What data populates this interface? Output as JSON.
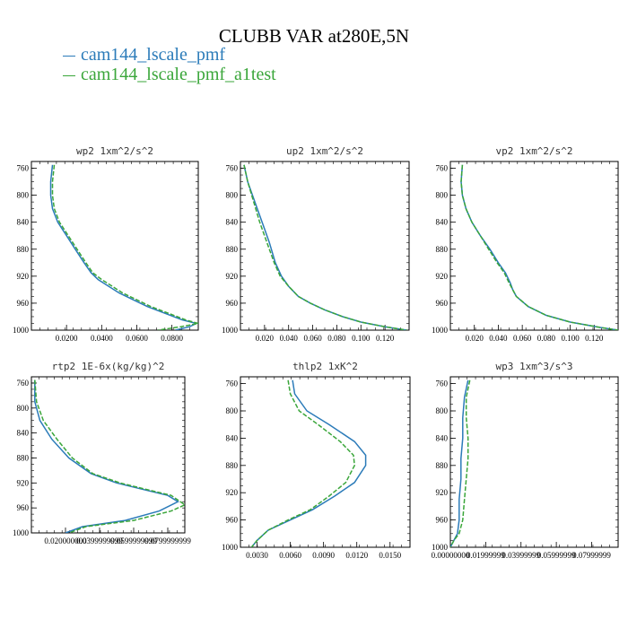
{
  "title": "CLUBB VAR at280E,5N",
  "legend": [
    {
      "label": "cam144_lscale_pmf",
      "color": "#2b7bb9"
    },
    {
      "label": "cam144_lscale_pmf_a1test",
      "color": "#3aa63a"
    }
  ],
  "chart_data": [
    {
      "type": "line",
      "title": "wp2  1xm^2/s^2",
      "xlim": [
        0.0,
        0.095
      ],
      "ylim": [
        1000,
        750
      ],
      "xticks": [
        "0.0200",
        "0.0400",
        "0.0600",
        "0.0800"
      ],
      "xtick_values": [
        0.02,
        0.04,
        0.06,
        0.08
      ],
      "yticks": [
        "760",
        "800",
        "840",
        "880",
        "920",
        "960",
        "1000"
      ],
      "series": [
        {
          "name": "cam144_lscale_pmf",
          "x": [
            0.012,
            0.011,
            0.011,
            0.012,
            0.015,
            0.02,
            0.025,
            0.03,
            0.034,
            0.038,
            0.044,
            0.05,
            0.058,
            0.066,
            0.076,
            0.086,
            0.094,
            0.09,
            0.082
          ],
          "y": [
            755,
            780,
            800,
            820,
            840,
            860,
            880,
            900,
            915,
            925,
            935,
            945,
            955,
            965,
            975,
            985,
            990,
            995,
            1000
          ]
        },
        {
          "name": "cam144_lscale_pmf_a1test",
          "x": [
            0.013,
            0.012,
            0.012,
            0.013,
            0.016,
            0.021,
            0.026,
            0.031,
            0.035,
            0.04,
            0.046,
            0.052,
            0.06,
            0.068,
            0.078,
            0.088,
            0.095,
            0.085,
            0.072
          ],
          "y": [
            755,
            780,
            800,
            820,
            840,
            860,
            880,
            900,
            915,
            925,
            935,
            945,
            955,
            965,
            975,
            985,
            990,
            995,
            1000
          ]
        }
      ]
    },
    {
      "type": "line",
      "title": "up2  1xm^2/s^2",
      "xlim": [
        0.0,
        0.14
      ],
      "ylim": [
        1000,
        750
      ],
      "xticks": [
        "0.020",
        "0.040",
        "0.060",
        "0.080",
        "0.100",
        "0.120"
      ],
      "xtick_values": [
        0.02,
        0.04,
        0.06,
        0.08,
        0.1,
        0.12
      ],
      "yticks": [
        "760",
        "800",
        "840",
        "880",
        "920",
        "960",
        "1000"
      ],
      "series": [
        {
          "name": "cam144_lscale_pmf",
          "x": [
            0.003,
            0.006,
            0.012,
            0.018,
            0.024,
            0.029,
            0.034,
            0.04,
            0.048,
            0.058,
            0.07,
            0.085,
            0.1,
            0.12,
            0.138
          ],
          "y": [
            755,
            780,
            810,
            840,
            870,
            900,
            920,
            935,
            950,
            960,
            970,
            980,
            988,
            995,
            1000
          ]
        },
        {
          "name": "cam144_lscale_pmf_a1test",
          "x": [
            0.003,
            0.006,
            0.011,
            0.016,
            0.022,
            0.028,
            0.033,
            0.04,
            0.048,
            0.058,
            0.07,
            0.085,
            0.1,
            0.12,
            0.138
          ],
          "y": [
            755,
            780,
            810,
            840,
            870,
            900,
            920,
            935,
            950,
            960,
            970,
            980,
            988,
            995,
            1000
          ]
        }
      ]
    },
    {
      "type": "line",
      "title": "vp2  1xm^2/s^2",
      "xlim": [
        0.0,
        0.14
      ],
      "ylim": [
        1000,
        750
      ],
      "xticks": [
        "0.020",
        "0.040",
        "0.060",
        "0.080",
        "0.100",
        "0.120"
      ],
      "xtick_values": [
        0.02,
        0.04,
        0.06,
        0.08,
        0.1,
        0.12
      ],
      "yticks": [
        "760",
        "800",
        "840",
        "880",
        "920",
        "960",
        "1000"
      ],
      "series": [
        {
          "name": "cam144_lscale_pmf",
          "x": [
            0.01,
            0.009,
            0.01,
            0.013,
            0.018,
            0.025,
            0.033,
            0.04,
            0.046,
            0.05,
            0.052,
            0.055,
            0.065,
            0.08,
            0.1,
            0.125,
            0.14
          ],
          "y": [
            755,
            780,
            800,
            820,
            840,
            860,
            880,
            900,
            915,
            930,
            940,
            950,
            965,
            978,
            988,
            996,
            1000
          ]
        },
        {
          "name": "cam144_lscale_pmf_a1test",
          "x": [
            0.01,
            0.009,
            0.01,
            0.013,
            0.018,
            0.025,
            0.032,
            0.039,
            0.045,
            0.049,
            0.052,
            0.055,
            0.065,
            0.08,
            0.1,
            0.125,
            0.14
          ],
          "y": [
            755,
            780,
            800,
            820,
            840,
            860,
            880,
            900,
            915,
            930,
            940,
            950,
            965,
            978,
            988,
            996,
            1000
          ]
        }
      ]
    },
    {
      "type": "line",
      "title": "rtp2  1E-6x(kg/kg)^2",
      "xlim": [
        0.0,
        0.09
      ],
      "ylim": [
        1000,
        750
      ],
      "xticks": [
        "0.020000000",
        "0.0399999999",
        "0.0599999999",
        "0.0799999999"
      ],
      "xtick_values": [
        0.02,
        0.04,
        0.06,
        0.08
      ],
      "yticks": [
        "760",
        "800",
        "840",
        "880",
        "920",
        "960",
        "1000"
      ],
      "series": [
        {
          "name": "cam144_lscale_pmf",
          "x": [
            0.002,
            0.002,
            0.005,
            0.012,
            0.022,
            0.035,
            0.05,
            0.065,
            0.08,
            0.086,
            0.075,
            0.055,
            0.03,
            0.02
          ],
          "y": [
            755,
            790,
            820,
            850,
            880,
            905,
            920,
            930,
            940,
            950,
            965,
            980,
            990,
            1000
          ]
        },
        {
          "name": "cam144_lscale_pmf_a1test",
          "x": [
            0.002,
            0.003,
            0.007,
            0.015,
            0.024,
            0.036,
            0.052,
            0.067,
            0.082,
            0.09,
            0.082,
            0.06,
            0.032,
            0.022
          ],
          "y": [
            755,
            790,
            820,
            850,
            880,
            905,
            920,
            930,
            940,
            955,
            965,
            980,
            990,
            1000
          ]
        }
      ]
    },
    {
      "type": "line",
      "title": "thlp2  1xK^2",
      "xlim": [
        0.0015,
        0.0168
      ],
      "ylim": [
        1000,
        750
      ],
      "xticks": [
        "0.0030",
        "0.0060",
        "0.0090",
        "0.0120",
        "0.0150"
      ],
      "xtick_values": [
        0.003,
        0.006,
        0.009,
        0.012,
        0.015
      ],
      "yticks": [
        "760",
        "800",
        "840",
        "880",
        "920",
        "960",
        "1000"
      ],
      "series": [
        {
          "name": "cam144_lscale_pmf",
          "x": [
            0.0062,
            0.0064,
            0.0075,
            0.0095,
            0.0118,
            0.0128,
            0.0128,
            0.0118,
            0.01,
            0.008,
            0.006,
            0.004,
            0.003,
            0.0025
          ],
          "y": [
            755,
            775,
            800,
            820,
            845,
            865,
            880,
            905,
            925,
            945,
            960,
            975,
            990,
            1000
          ]
        },
        {
          "name": "cam144_lscale_pmf_a1test",
          "x": [
            0.0058,
            0.006,
            0.0068,
            0.0085,
            0.0105,
            0.0117,
            0.0118,
            0.011,
            0.0095,
            0.0078,
            0.0058,
            0.004,
            0.003,
            0.0025
          ],
          "y": [
            755,
            775,
            800,
            820,
            845,
            865,
            880,
            905,
            925,
            945,
            960,
            975,
            990,
            1000
          ]
        }
      ]
    },
    {
      "type": "line",
      "title": "wp3  1xm^3/s^3",
      "xlim": [
        0.0,
        0.095
      ],
      "ylim": [
        1000,
        750
      ],
      "xticks": [
        "0.00000000",
        "0.01999999",
        "0.03999999",
        "0.05999999",
        "0.07999999"
      ],
      "xtick_values": [
        0.0,
        0.02,
        0.04,
        0.06,
        0.08
      ],
      "yticks": [
        "760",
        "800",
        "840",
        "880",
        "920",
        "960",
        "1000"
      ],
      "series": [
        {
          "name": "cam144_lscale_pmf",
          "x": [
            0.01,
            0.008,
            0.007,
            0.007,
            0.006,
            0.006,
            0.005,
            0.005,
            0.004,
            0.002,
            0.0
          ],
          "y": [
            755,
            780,
            810,
            840,
            870,
            900,
            930,
            960,
            980,
            990,
            1000
          ]
        },
        {
          "name": "cam144_lscale_pmf_a1test",
          "x": [
            0.011,
            0.009,
            0.009,
            0.01,
            0.01,
            0.009,
            0.008,
            0.007,
            0.005,
            0.002,
            0.0
          ],
          "y": [
            755,
            780,
            810,
            840,
            870,
            900,
            930,
            960,
            980,
            990,
            1000
          ]
        }
      ]
    }
  ]
}
